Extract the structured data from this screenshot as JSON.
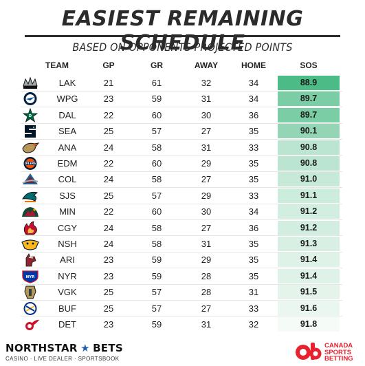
{
  "header": {
    "title": "EASIEST REMAINING SCHEDULE",
    "subtitle": "BASED ON OPPONENTS PROJECTED POINTS"
  },
  "columns": [
    "TEAM",
    "GP",
    "GR",
    "AWAY",
    "HOME",
    "SOS"
  ],
  "footer": {
    "left_brand": "NORTHSTAR",
    "left_brand_suffix": "BETS",
    "left_tagline": "CASINO · LIVE DEALER · SPORTSBOOK",
    "right_brand_line1": "CANADA",
    "right_brand_line2": "SPORTS",
    "right_brand_line3": "BETTING"
  },
  "colors": {
    "sos_scale_low": "#4dbb86",
    "sos_scale_high": "#f5fbf7",
    "title": "#2b2b2b",
    "brand_red": "#e8212e"
  },
  "chart_data": {
    "type": "table",
    "title": "EASIEST REMAINING SCHEDULE",
    "subtitle": "BASED ON OPPONENTS PROJECTED POINTS",
    "columns": [
      "TEAM",
      "GP",
      "GR",
      "AWAY",
      "HOME",
      "SOS"
    ],
    "rows": [
      {
        "team": "LAK",
        "logo": "kings-logo-icon",
        "gp": "21",
        "gr": "61",
        "away": "32",
        "home": "34",
        "sos": "88.9"
      },
      {
        "team": "WPG",
        "logo": "jets-logo-icon",
        "gp": "23",
        "gr": "59",
        "away": "31",
        "home": "34",
        "sos": "89.7"
      },
      {
        "team": "DAL",
        "logo": "stars-logo-icon",
        "gp": "22",
        "gr": "60",
        "away": "30",
        "home": "36",
        "sos": "89.7"
      },
      {
        "team": "SEA",
        "logo": "kraken-logo-icon",
        "gp": "25",
        "gr": "57",
        "away": "27",
        "home": "35",
        "sos": "90.1"
      },
      {
        "team": "ANA",
        "logo": "ducks-logo-icon",
        "gp": "24",
        "gr": "58",
        "away": "31",
        "home": "33",
        "sos": "90.8"
      },
      {
        "team": "EDM",
        "logo": "oilers-logo-icon",
        "gp": "22",
        "gr": "60",
        "away": "29",
        "home": "35",
        "sos": "90.8"
      },
      {
        "team": "COL",
        "logo": "avalanche-logo-icon",
        "gp": "24",
        "gr": "58",
        "away": "27",
        "home": "35",
        "sos": "91.0"
      },
      {
        "team": "SJS",
        "logo": "sharks-logo-icon",
        "gp": "25",
        "gr": "57",
        "away": "29",
        "home": "33",
        "sos": "91.1"
      },
      {
        "team": "MIN",
        "logo": "wild-logo-icon",
        "gp": "22",
        "gr": "60",
        "away": "30",
        "home": "34",
        "sos": "91.2"
      },
      {
        "team": "CGY",
        "logo": "flames-logo-icon",
        "gp": "24",
        "gr": "58",
        "away": "27",
        "home": "36",
        "sos": "91.2"
      },
      {
        "team": "NSH",
        "logo": "predators-logo-icon",
        "gp": "24",
        "gr": "58",
        "away": "31",
        "home": "35",
        "sos": "91.3"
      },
      {
        "team": "ARI",
        "logo": "coyotes-logo-icon",
        "gp": "23",
        "gr": "59",
        "away": "29",
        "home": "35",
        "sos": "91.4"
      },
      {
        "team": "NYR",
        "logo": "rangers-logo-icon",
        "gp": "23",
        "gr": "59",
        "away": "28",
        "home": "35",
        "sos": "91.4"
      },
      {
        "team": "VGK",
        "logo": "golden-knights-logo-icon",
        "gp": "25",
        "gr": "57",
        "away": "28",
        "home": "31",
        "sos": "91.5"
      },
      {
        "team": "BUF",
        "logo": "sabres-logo-icon",
        "gp": "25",
        "gr": "57",
        "away": "27",
        "home": "33",
        "sos": "91.6"
      },
      {
        "team": "DET",
        "logo": "red-wings-logo-icon",
        "gp": "23",
        "gr": "59",
        "away": "31",
        "home": "32",
        "sos": "91.8"
      }
    ]
  }
}
